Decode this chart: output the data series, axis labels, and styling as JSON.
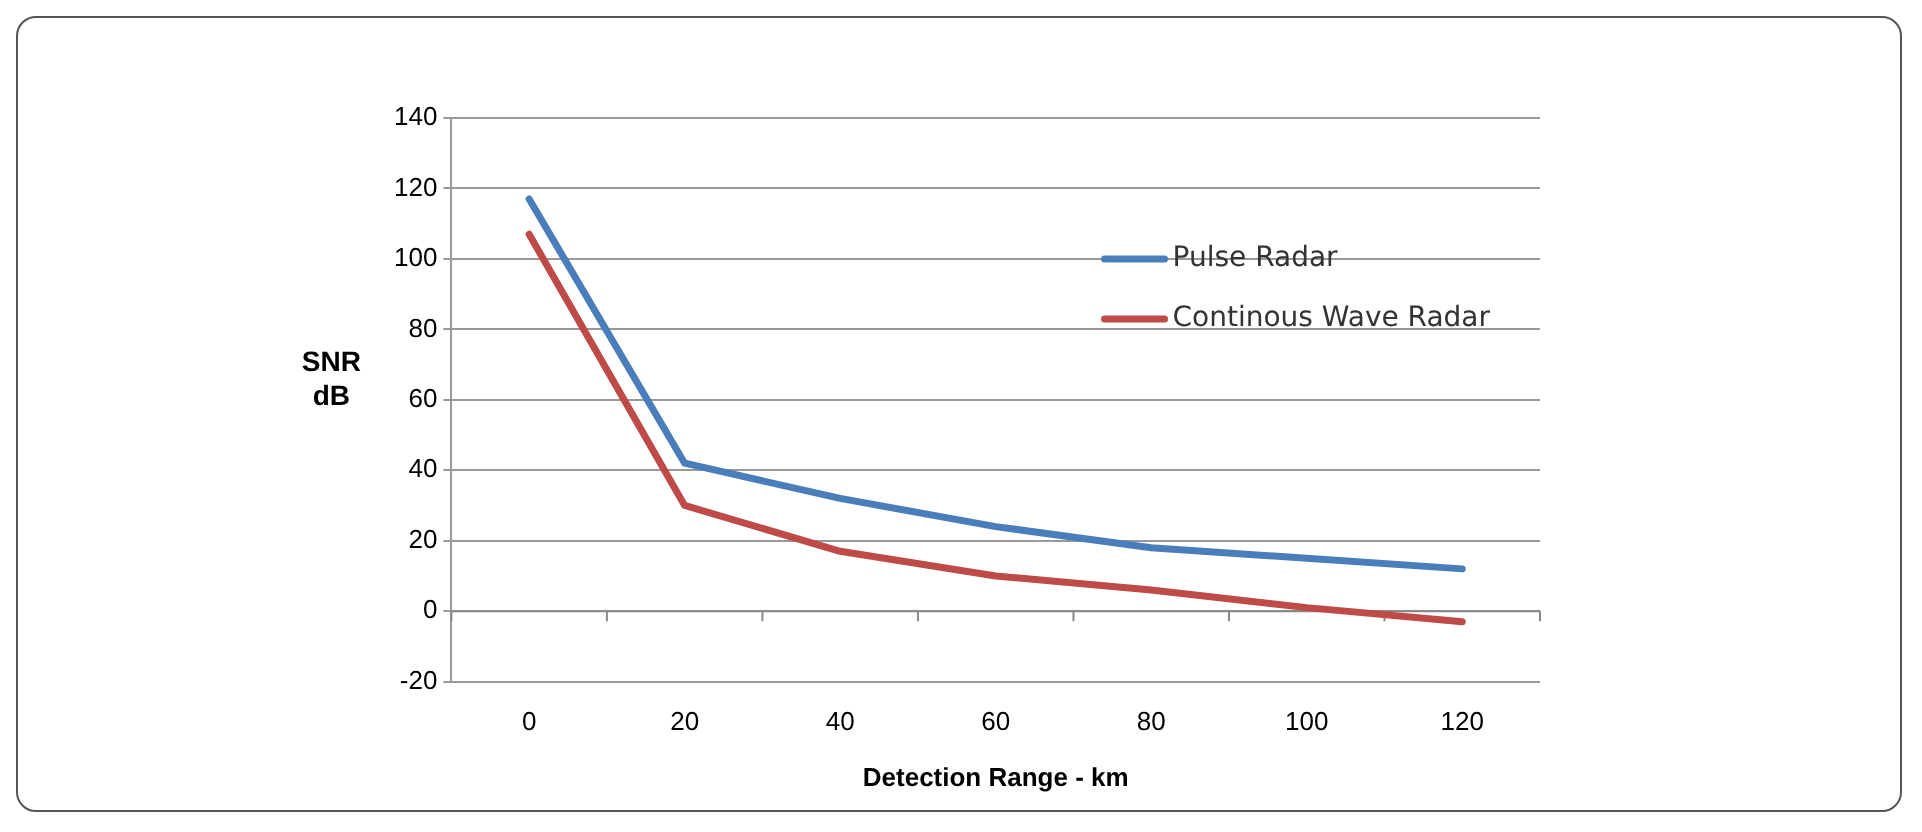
{
  "chart_data": {
    "type": "line",
    "xlabel": "Detection Range - km",
    "ylabel": "SNR dB",
    "categories": [
      "0",
      "20",
      "40",
      "60",
      "80",
      "100",
      "120"
    ],
    "series": [
      {
        "name": "Pulse Radar",
        "color": "#4a7ebb",
        "values": [
          117,
          42,
          32,
          24,
          18,
          15,
          12
        ]
      },
      {
        "name": "Continous Wave Radar",
        "color": "#be4b48",
        "values": [
          107,
          30,
          17,
          10,
          6,
          1,
          -3
        ]
      }
    ],
    "ylim": [
      -20,
      140
    ],
    "yticks": [
      -20,
      0,
      20,
      40,
      60,
      80,
      100,
      120,
      140
    ],
    "grid": "y",
    "legend": "right",
    "marker": "none",
    "line_style": "solid"
  }
}
